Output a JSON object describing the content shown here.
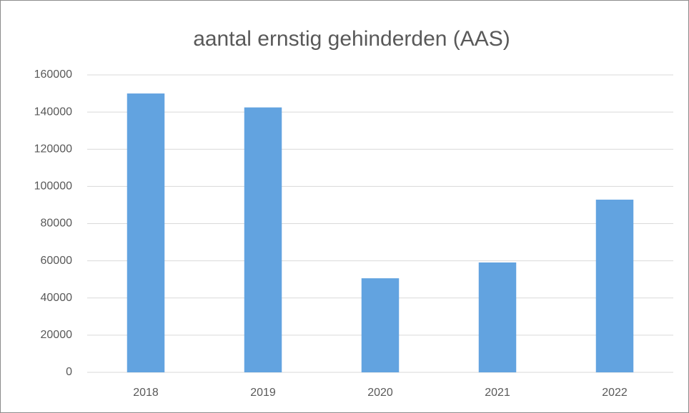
{
  "chart_data": {
    "type": "bar",
    "title": "aantal ernstig gehinderden (AAS)",
    "categories": [
      "2018",
      "2019",
      "2020",
      "2021",
      "2022"
    ],
    "values": [
      150000,
      142500,
      50600,
      59100,
      92900
    ],
    "color": "#62a3e0",
    "ylim": [
      0,
      160000
    ],
    "yticks": [
      0,
      20000,
      40000,
      60000,
      80000,
      100000,
      120000,
      140000,
      160000
    ],
    "grid": true
  }
}
